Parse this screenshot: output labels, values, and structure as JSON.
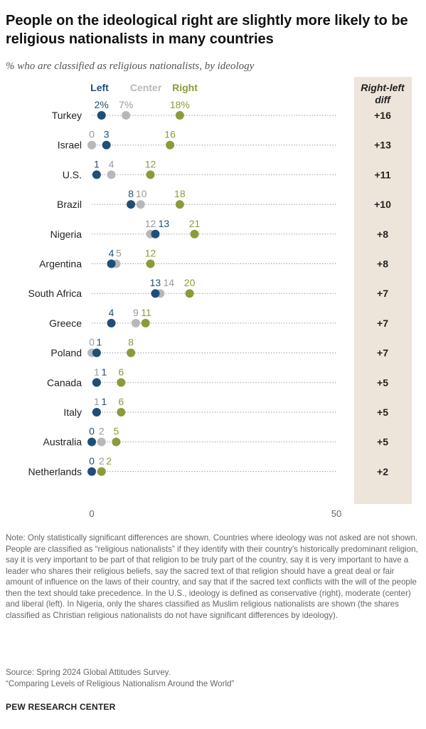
{
  "title": "People on the ideological right are slightly more likely to be religious nationalists in many countries",
  "subtitle": "% who are classified as religious nationalists, by ideology",
  "note": "Note: Only statistically significant differences are shown. Countries where ideology was not asked are not shown. People are classified as “religious nationalists” if they identify with their country’s historically predominant religion, say it is very important to be part of that religion to be truly part of the country, say it is very important to have a leader who shares their religious beliefs, say the sacred text of that religion should have a great deal or fair amount of influence on the laws of their country, and say that if the sacred text conflicts with the will of the people then the text should take precedence. In the U.S., ideology is defined as conservative (right), moderate (center) and liberal (left). In Nigeria, only the shares classified as Muslim religious nationalists are shown (the shares classified as Christian religious nationalists do not have significant differences by ideology).",
  "source": "Source: Spring 2024 Global Attitudes Survey.",
  "report": "“Comparing Levels of Religious Nationalism Around the World”",
  "org": "PEW RESEARCH CENTER",
  "colors": {
    "left": "#1f4e79",
    "center": "#b8b8b8",
    "right": "#8c9a3c",
    "diff_bg": "#ede5d9"
  },
  "chart_data": {
    "type": "dot",
    "diff_header": "Right-left diff",
    "xlim": [
      0,
      50
    ],
    "xticks": [
      "0",
      "50"
    ],
    "series": [
      {
        "name": "Left",
        "color": "#1f4e79"
      },
      {
        "name": "Center",
        "color": "#b8b8b8"
      },
      {
        "name": "Right",
        "color": "#8c9a3c"
      }
    ],
    "rows": [
      {
        "country": "Turkey",
        "left": 2,
        "center": 7,
        "right": 18,
        "diff": "+16",
        "labels": {
          "left": "2%",
          "center": "7%",
          "right": "18%"
        }
      },
      {
        "country": "Israel",
        "left": 3,
        "center": 0,
        "right": 16,
        "diff": "+13",
        "labels": {
          "left": "3",
          "center": "0",
          "right": "16"
        }
      },
      {
        "country": "U.S.",
        "left": 1,
        "center": 4,
        "right": 12,
        "diff": "+11",
        "labels": {
          "left": "1",
          "center": "4",
          "right": "12"
        }
      },
      {
        "country": "Brazil",
        "left": 8,
        "center": 10,
        "right": 18,
        "diff": "+10",
        "labels": {
          "left": "8",
          "center": "10",
          "right": "18"
        }
      },
      {
        "country": "Nigeria",
        "left": 13,
        "center": 12,
        "right": 21,
        "diff": "+8",
        "labels": {
          "left": "13",
          "center": "12",
          "right": "21"
        }
      },
      {
        "country": "Argentina",
        "left": 4,
        "center": 5,
        "right": 12,
        "diff": "+8",
        "labels": {
          "left": "4",
          "center": "5",
          "right": "12"
        }
      },
      {
        "country": "South Africa",
        "left": 13,
        "center": 14,
        "right": 20,
        "diff": "+7",
        "labels": {
          "left": "13",
          "center": "14",
          "right": "20"
        }
      },
      {
        "country": "Greece",
        "left": 4,
        "center": 9,
        "right": 11,
        "diff": "+7",
        "labels": {
          "left": "4",
          "center": "9",
          "right": "11"
        }
      },
      {
        "country": "Poland",
        "left": 1,
        "center": 0,
        "right": 8,
        "diff": "+7",
        "labels": {
          "left": "1",
          "center": "0",
          "right": "8"
        }
      },
      {
        "country": "Canada",
        "left": 1,
        "center": 1,
        "right": 6,
        "diff": "+5",
        "labels": {
          "left": "1",
          "center": "1",
          "right": "6"
        }
      },
      {
        "country": "Italy",
        "left": 1,
        "center": 1,
        "right": 6,
        "diff": "+5",
        "labels": {
          "left": "1",
          "center": "1",
          "right": "6"
        }
      },
      {
        "country": "Australia",
        "left": 0,
        "center": 2,
        "right": 5,
        "diff": "+5",
        "labels": {
          "left": "0",
          "center": "2",
          "right": "5"
        }
      },
      {
        "country": "Netherlands",
        "left": 0,
        "center": 2,
        "right": 2,
        "diff": "+2",
        "labels": {
          "left": "0",
          "center": "2",
          "right": "2"
        }
      }
    ]
  }
}
